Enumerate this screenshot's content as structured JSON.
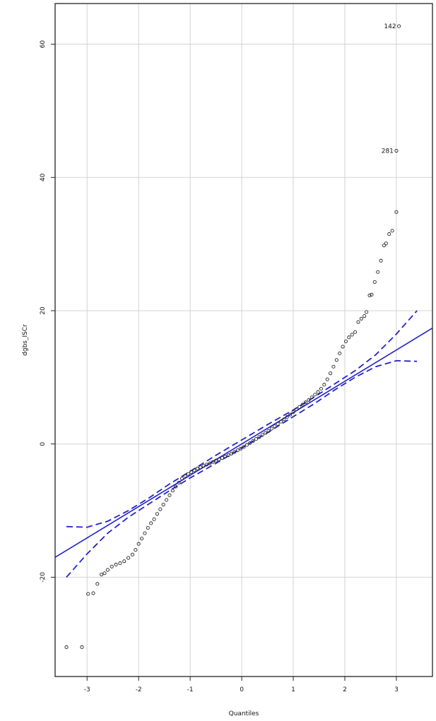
{
  "chart_data": {
    "type": "scatter",
    "title": "",
    "xlabel": "Quantiles",
    "ylabel": "dgbs_ISCr",
    "xlim": [
      -3.62,
      3.7
    ],
    "ylim": [
      -34.9,
      66.1
    ],
    "grid": true,
    "x_ticks": [
      -3,
      -2,
      -1,
      0,
      1,
      2,
      3
    ],
    "x_tick_labels": [
      "-3",
      "-2",
      "-1",
      "0",
      "1",
      "2",
      "3"
    ],
    "y_ticks": [
      -20,
      0,
      20,
      40,
      60
    ],
    "y_tick_labels": [
      "-20",
      "0",
      "20",
      "40",
      "60"
    ],
    "colors": {
      "points": "#222222",
      "reference_line": "#2222cc",
      "grid": "#d3d3d3",
      "frame": "#222222"
    },
    "reference_line": {
      "intercept": 0.0,
      "slope": 4.7
    },
    "confidence_band": {
      "x": [
        -3.4,
        -3.0,
        -2.6,
        -2.2,
        -1.8,
        -1.4,
        -1.0,
        -0.5,
        0.0,
        0.5,
        1.0,
        1.4,
        1.8,
        2.2,
        2.6,
        3.0,
        3.4
      ],
      "upper": [
        -12.4,
        -12.5,
        -11.6,
        -10.0,
        -8.1,
        -6.0,
        -4.1,
        -1.7,
        0.6,
        2.9,
        5.1,
        7.0,
        9.0,
        11.0,
        13.4,
        16.5,
        20.0
      ],
      "lower": [
        -20.0,
        -16.5,
        -13.4,
        -11.0,
        -9.0,
        -7.0,
        -5.1,
        -2.9,
        -0.6,
        1.7,
        4.1,
        6.0,
        8.1,
        10.0,
        11.6,
        12.5,
        12.4
      ]
    },
    "points_named": [
      {
        "label": "142",
        "x": 3.05,
        "y": 62.7
      },
      {
        "label": "281",
        "x": 3.0,
        "y": 44.0
      }
    ],
    "points": [
      [
        -3.4,
        -30.5
      ],
      [
        -3.1,
        -30.5
      ],
      [
        -2.98,
        -22.5
      ],
      [
        -2.88,
        -22.4
      ],
      [
        -2.8,
        -21.0
      ],
      [
        -2.72,
        -19.6
      ],
      [
        -2.66,
        -19.4
      ],
      [
        -2.6,
        -18.9
      ],
      [
        -2.52,
        -18.4
      ],
      [
        -2.44,
        -18.1
      ],
      [
        -2.36,
        -17.9
      ],
      [
        -2.28,
        -17.6
      ],
      [
        -2.2,
        -17.1
      ],
      [
        -2.12,
        -16.6
      ],
      [
        -2.06,
        -15.9
      ],
      [
        -2.0,
        -15.0
      ],
      [
        -1.94,
        -14.2
      ],
      [
        -1.88,
        -13.4
      ],
      [
        -1.82,
        -12.6
      ],
      [
        -1.76,
        -11.9
      ],
      [
        -1.7,
        -11.3
      ],
      [
        -1.64,
        -10.5
      ],
      [
        -1.58,
        -9.8
      ],
      [
        -1.52,
        -9.1
      ],
      [
        -1.46,
        -8.4
      ],
      [
        -1.4,
        -7.7
      ],
      [
        -1.34,
        -7.0
      ],
      [
        -1.28,
        -6.4
      ],
      [
        -1.22,
        -5.8
      ],
      [
        -1.16,
        -5.2
      ],
      [
        -1.1,
        -4.8
      ],
      [
        -1.04,
        -4.5
      ],
      [
        -0.98,
        -4.2
      ],
      [
        -0.92,
        -3.95
      ],
      [
        -0.86,
        -3.7
      ],
      [
        -0.8,
        -3.5
      ],
      [
        -0.74,
        -3.3
      ],
      [
        -0.68,
        -3.1
      ],
      [
        -0.62,
        -2.9
      ],
      [
        -0.56,
        -2.7
      ],
      [
        -0.5,
        -2.5
      ],
      [
        -0.44,
        -2.3
      ],
      [
        -0.38,
        -2.1
      ],
      [
        -0.32,
        -1.9
      ],
      [
        -0.26,
        -1.7
      ],
      [
        -0.2,
        -1.45
      ],
      [
        -0.14,
        -1.2
      ],
      [
        -0.08,
        -0.95
      ],
      [
        -0.02,
        -0.7
      ],
      [
        0.04,
        -0.45
      ],
      [
        0.1,
        -0.15
      ],
      [
        0.16,
        0.15
      ],
      [
        0.22,
        0.45
      ],
      [
        0.28,
        0.75
      ],
      [
        0.34,
        1.05
      ],
      [
        0.4,
        1.35
      ],
      [
        0.46,
        1.65
      ],
      [
        0.52,
        1.95
      ],
      [
        0.58,
        2.3
      ],
      [
        0.64,
        2.65
      ],
      [
        0.7,
        3.0
      ],
      [
        0.76,
        3.35
      ],
      [
        0.82,
        3.7
      ],
      [
        0.88,
        4.05
      ],
      [
        0.94,
        4.4
      ],
      [
        1.0,
        4.8
      ],
      [
        1.06,
        5.2
      ],
      [
        1.12,
        5.55
      ],
      [
        1.18,
        5.9
      ],
      [
        1.24,
        6.25
      ],
      [
        1.3,
        6.6
      ],
      [
        1.36,
        7.0
      ],
      [
        1.42,
        7.4
      ],
      [
        1.48,
        7.8
      ],
      [
        1.54,
        8.3
      ],
      [
        1.6,
        8.9
      ],
      [
        1.66,
        9.7
      ],
      [
        1.72,
        10.6
      ],
      [
        1.78,
        11.6
      ],
      [
        1.84,
        12.6
      ],
      [
        1.9,
        13.6
      ],
      [
        1.96,
        14.6
      ],
      [
        2.02,
        15.4
      ],
      [
        2.08,
        16.0
      ],
      [
        2.14,
        16.4
      ],
      [
        2.2,
        16.8
      ],
      [
        2.26,
        18.3
      ],
      [
        2.32,
        18.8
      ],
      [
        2.38,
        19.2
      ],
      [
        2.42,
        19.8
      ],
      [
        2.48,
        22.3
      ],
      [
        2.52,
        22.4
      ],
      [
        2.58,
        24.3
      ],
      [
        2.64,
        25.8
      ],
      [
        2.7,
        27.5
      ],
      [
        2.76,
        29.8
      ],
      [
        2.8,
        30.1
      ],
      [
        2.86,
        31.5
      ],
      [
        2.92,
        32.0
      ],
      [
        3.0,
        34.8
      ]
    ]
  }
}
